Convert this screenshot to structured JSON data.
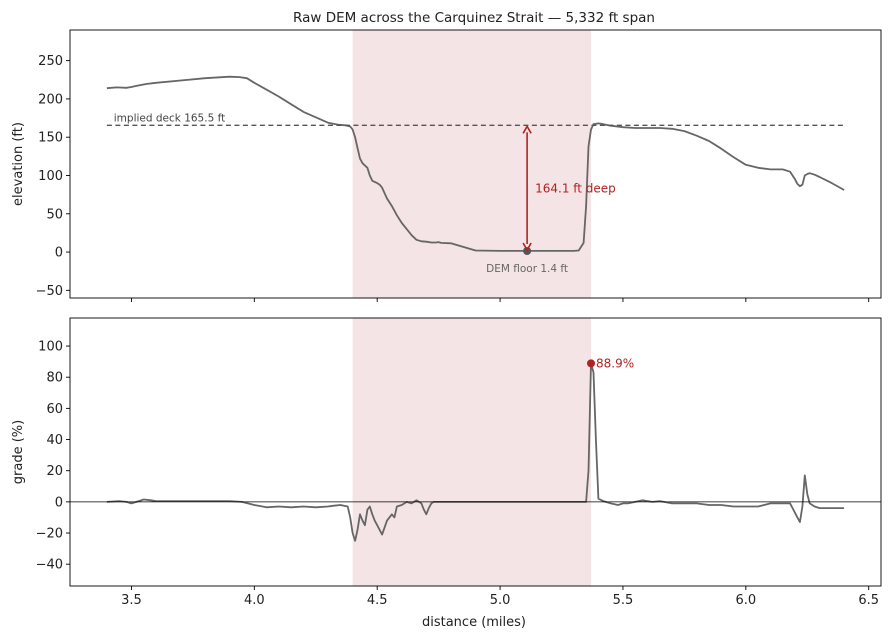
{
  "chart_data": [
    {
      "type": "line",
      "title": "Raw DEM across the Carquinez Strait — 5,332 ft span",
      "xlabel": "",
      "ylabel": "elevation (ft)",
      "xlim": [
        3.25,
        6.55
      ],
      "ylim": [
        -60,
        290
      ],
      "yticks": [
        -50,
        0,
        50,
        100,
        150,
        200,
        250
      ],
      "xticks": [
        3.5,
        4.0,
        4.5,
        5.0,
        5.5,
        6.0,
        6.5
      ],
      "grid": false,
      "span_shade": [
        4.4,
        5.37
      ],
      "series": [
        {
          "color": "#666666",
          "x": [
            3.4,
            3.44,
            3.48,
            3.5,
            3.52,
            3.56,
            3.6,
            3.7,
            3.8,
            3.9,
            3.94,
            3.97,
            4.0,
            4.05,
            4.1,
            4.15,
            4.2,
            4.25,
            4.3,
            4.34,
            4.37,
            4.39,
            4.4,
            4.41,
            4.42,
            4.43,
            4.44,
            4.46,
            4.47,
            4.48,
            4.5,
            4.51,
            4.52,
            4.54,
            4.56,
            4.58,
            4.6,
            4.62,
            4.64,
            4.66,
            4.68,
            4.7,
            4.72,
            4.74,
            4.75,
            4.76,
            4.8,
            4.9,
            5.0,
            5.05,
            5.1,
            5.15,
            5.2,
            5.25,
            5.3,
            5.32,
            5.34,
            5.35,
            5.36,
            5.37,
            5.38,
            5.4,
            5.42,
            5.45,
            5.5,
            5.55,
            5.6,
            5.65,
            5.7,
            5.75,
            5.8,
            5.85,
            5.9,
            5.95,
            6.0,
            6.05,
            6.1,
            6.15,
            6.18,
            6.2,
            6.21,
            6.22,
            6.23,
            6.24,
            6.25,
            6.26,
            6.28,
            6.3,
            6.35,
            6.4
          ],
          "y": [
            214,
            215,
            214.5,
            215.5,
            217,
            219.5,
            221,
            224,
            227,
            229,
            228.5,
            227,
            221,
            212,
            203,
            193,
            183,
            176,
            169,
            166.5,
            165.5,
            164,
            160,
            150,
            136,
            122,
            116,
            110,
            100,
            93,
            90,
            88,
            84,
            70,
            60,
            48,
            38,
            30,
            22,
            16,
            14,
            13.5,
            12.5,
            12.5,
            13,
            12,
            11.5,
            2,
            1.5,
            1.5,
            1.5,
            1.5,
            1.5,
            1.5,
            1.5,
            2,
            12,
            60,
            138,
            160,
            167,
            168,
            167,
            165,
            163,
            162,
            162,
            162,
            161,
            158,
            152,
            145,
            135,
            124,
            114,
            110,
            108,
            108,
            105,
            95,
            89,
            86,
            88,
            100,
            102,
            103,
            101,
            98,
            90,
            81
          ]
        },
        {
          "name": "",
          "color": "#555555",
          "style": "dashed",
          "x": [
            3.4,
            6.4
          ],
          "y": [
            165.5,
            165.5
          ]
        }
      ],
      "points": [
        {
          "x": 5.11,
          "y": 1.4,
          "color": "#555555"
        }
      ],
      "annotations": [
        {
          "text": "implied deck 165.5 ft",
          "x": 3.42,
          "y": 165.5,
          "color": "#444444"
        },
        {
          "text": "DEM floor 1.4 ft",
          "x": 5.11,
          "y": 1.4,
          "color": "#666666"
        },
        {
          "text": "164.1 ft deep",
          "x": 5.11,
          "y": 83,
          "color": "#b22222",
          "arrow_from": 1.4,
          "arrow_to": 165.5
        }
      ]
    },
    {
      "type": "line",
      "title": "",
      "xlabel": "distance (miles)",
      "ylabel": "grade (%)",
      "xlim": [
        3.25,
        6.55
      ],
      "ylim": [
        -54,
        118
      ],
      "yticks": [
        -40,
        -20,
        0,
        20,
        40,
        60,
        80,
        100
      ],
      "xticks": [
        3.5,
        4.0,
        4.5,
        5.0,
        5.5,
        6.0,
        6.5
      ],
      "xticklabels": [
        "3.5",
        "4.0",
        "4.5",
        "5.0",
        "5.5",
        "6.0",
        "6.5"
      ],
      "grid": false,
      "zero_line": true,
      "span_shade": [
        4.4,
        5.37
      ],
      "series": [
        {
          "color": "#666666",
          "x": [
            3.4,
            3.45,
            3.48,
            3.5,
            3.52,
            3.55,
            3.58,
            3.6,
            3.7,
            3.8,
            3.9,
            3.95,
            4.0,
            4.05,
            4.1,
            4.15,
            4.2,
            4.25,
            4.3,
            4.32,
            4.35,
            4.38,
            4.39,
            4.4,
            4.41,
            4.42,
            4.43,
            4.44,
            4.45,
            4.46,
            4.47,
            4.48,
            4.49,
            4.5,
            4.52,
            4.54,
            4.56,
            4.57,
            4.58,
            4.6,
            4.62,
            4.64,
            4.66,
            4.68,
            4.69,
            4.7,
            4.71,
            4.72,
            4.73,
            4.74,
            4.75,
            4.76,
            4.8,
            4.9,
            5.0,
            5.1,
            5.2,
            5.25,
            5.3,
            5.31,
            5.32,
            5.33,
            5.34,
            5.35,
            5.36,
            5.37,
            5.38,
            5.39,
            5.4,
            5.42,
            5.45,
            5.48,
            5.5,
            5.52,
            5.55,
            5.58,
            5.6,
            5.62,
            5.65,
            5.7,
            5.75,
            5.8,
            5.85,
            5.9,
            5.95,
            6.0,
            6.05,
            6.1,
            6.15,
            6.18,
            6.2,
            6.21,
            6.22,
            6.23,
            6.24,
            6.25,
            6.26,
            6.28,
            6.3,
            6.35,
            6.4
          ],
          "y": [
            0,
            0.5,
            0,
            -1,
            0,
            1.5,
            1,
            0.5,
            0.5,
            0.5,
            0.5,
            0,
            -2,
            -3.5,
            -3,
            -3.5,
            -3,
            -3.5,
            -3,
            -2.5,
            -2,
            -3,
            -10,
            -20,
            -25,
            -18,
            -8,
            -12,
            -15,
            -5,
            -3,
            -8,
            -12,
            -15,
            -21,
            -12,
            -8,
            -10,
            -3,
            -2,
            0,
            -1,
            1,
            -1,
            -5,
            -8,
            -4,
            -1,
            0,
            0,
            0,
            0,
            0,
            0,
            0,
            0,
            0,
            0,
            0,
            0,
            0,
            0,
            0,
            0,
            20,
            89,
            83,
            40,
            2,
            0.5,
            -1,
            -2,
            -1,
            -1,
            0,
            1,
            0.5,
            0,
            0.5,
            -1,
            -1,
            -1,
            -2,
            -2,
            -3,
            -3,
            -3,
            -1,
            -1,
            -1,
            -7,
            -10,
            -13,
            -3,
            17,
            5,
            -1,
            -3,
            -4,
            -4,
            -4
          ],
          "points": [],
          "name": ""
        }
      ],
      "points": [
        {
          "x": 5.37,
          "y": 88.9,
          "color": "#b22222"
        }
      ],
      "annotations": [
        {
          "text": "88.9%",
          "x": 5.37,
          "y": 88.9,
          "color": "#b22222"
        }
      ]
    }
  ],
  "colors": {
    "shade": "#f5e4e5",
    "line": "#666666",
    "accent": "#b22222"
  }
}
